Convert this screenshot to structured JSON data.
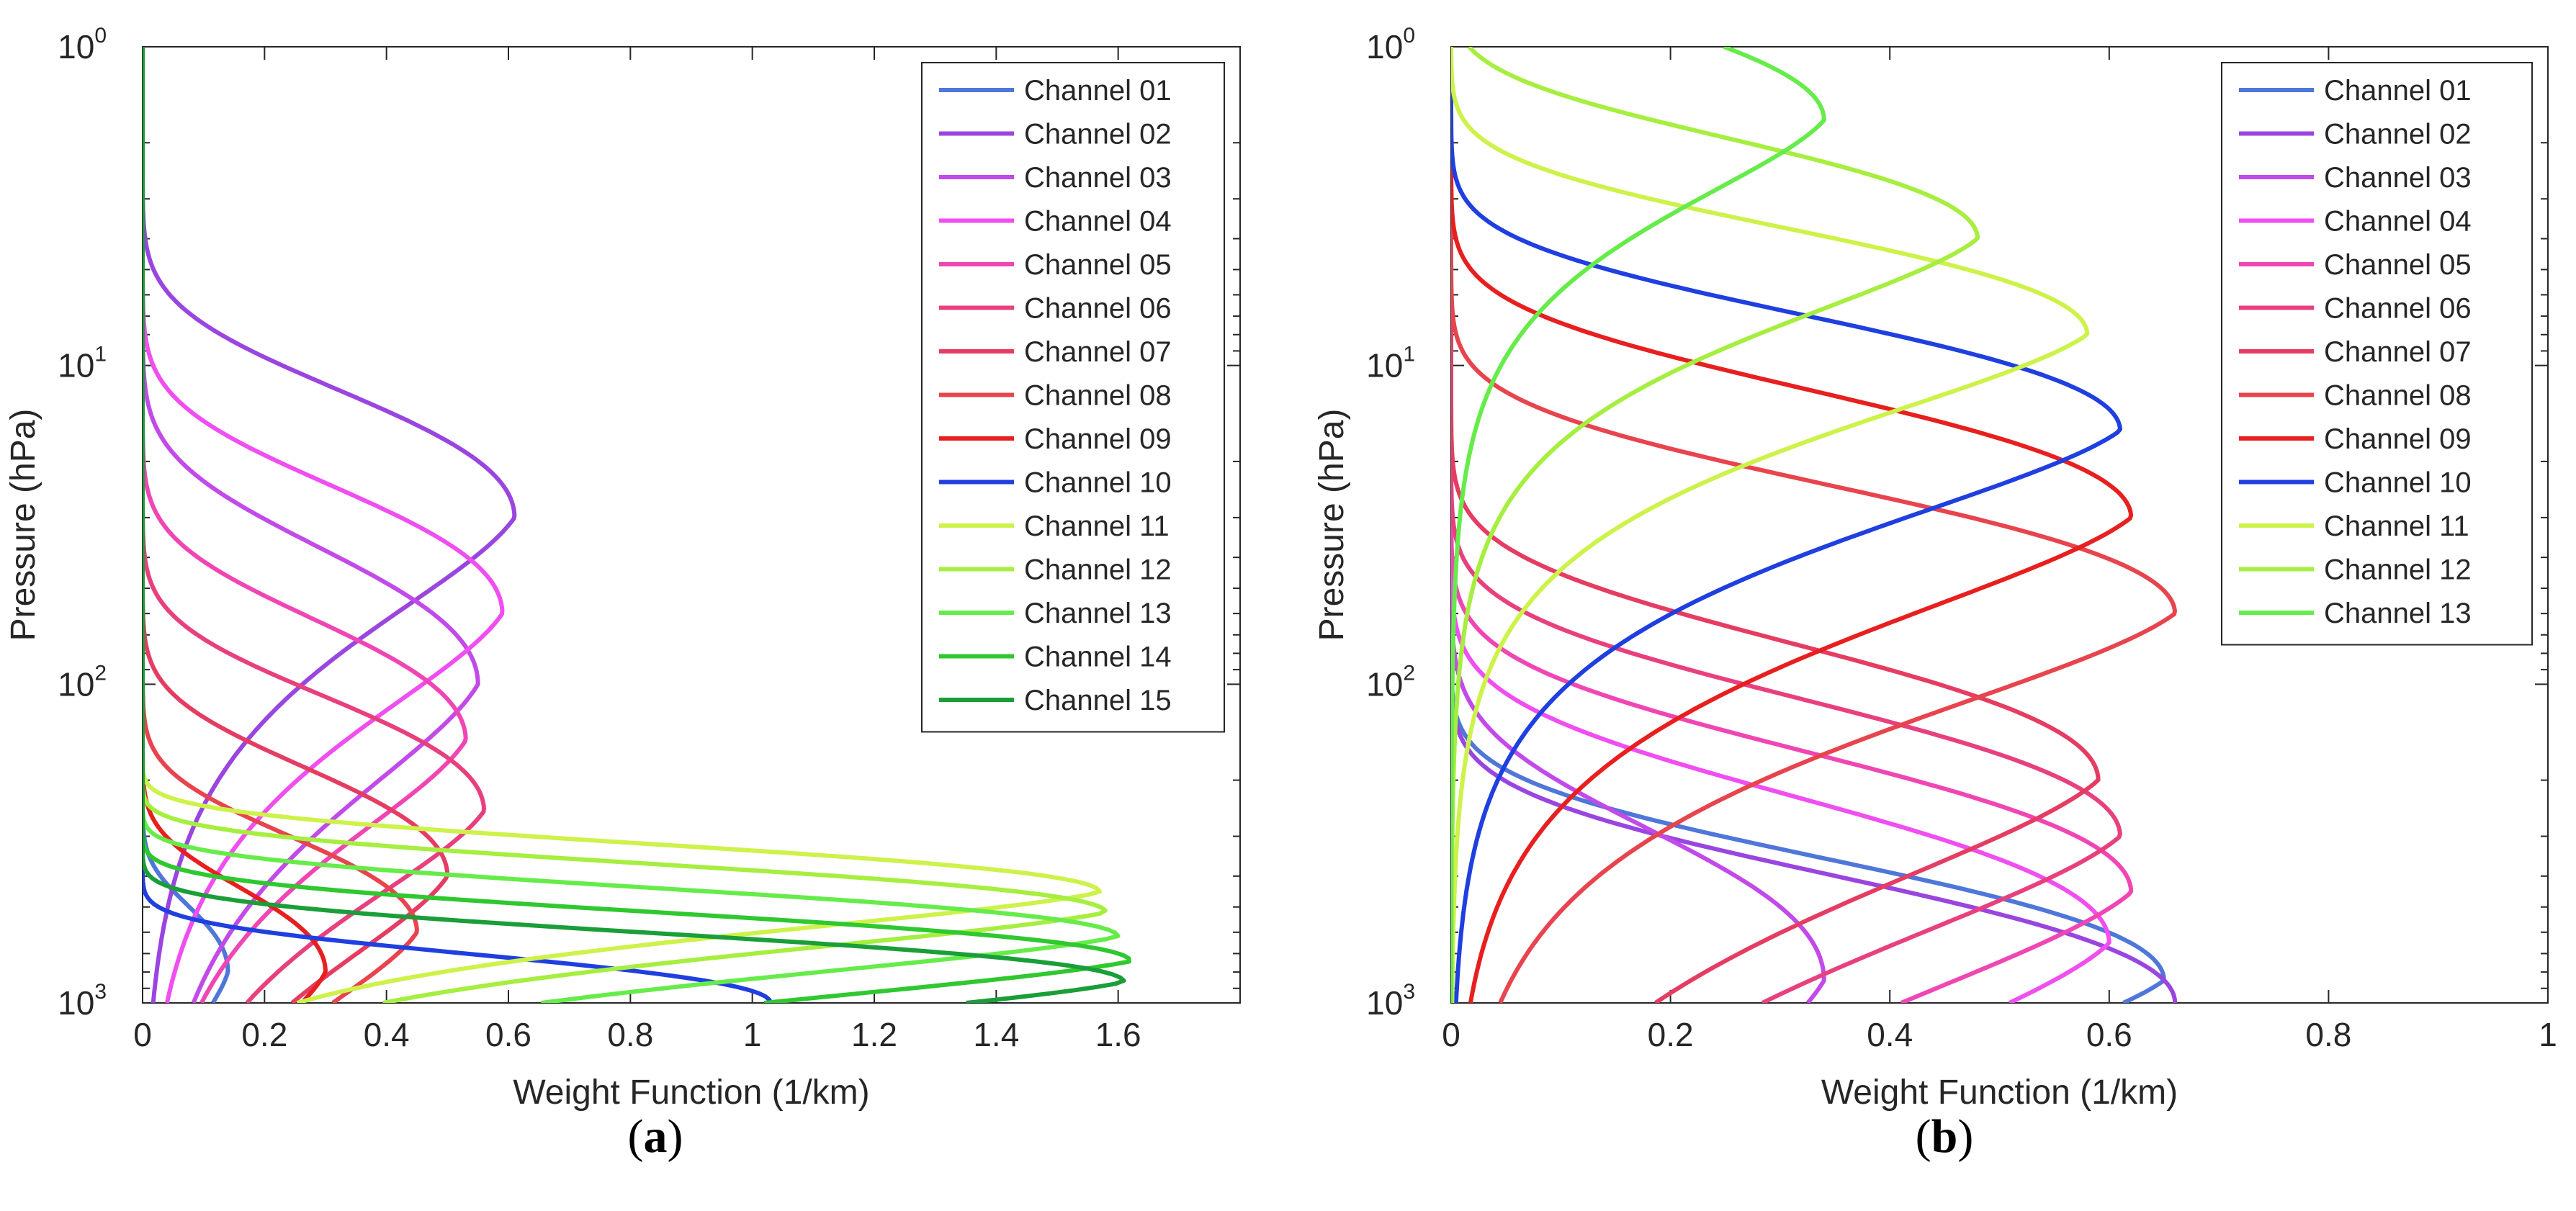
{
  "chart_data": [
    {
      "type": "line",
      "panel_label": "a",
      "xlabel": "Weight Function (1/km)",
      "ylabel": "Pressure (hPa)",
      "xlim": [
        0,
        1.8
      ],
      "ylim": [
        1000,
        1
      ],
      "yscale": "log",
      "xticks": [
        0,
        0.2,
        0.4,
        0.6,
        0.8,
        1,
        1.2,
        1.4,
        1.6
      ],
      "xtick_labels": [
        "0",
        "0.2",
        "0.4",
        "0.6",
        "0.8",
        "1",
        "1.2",
        "1.4",
        "1.6"
      ],
      "yticks": [
        1,
        10,
        100,
        1000
      ],
      "ytick_base": "10",
      "ytick_exponents": [
        "0",
        "1",
        "2",
        "3"
      ],
      "legend_position": "top-right",
      "series": [
        {
          "name": "Channel 01",
          "color": "#4f76d9",
          "peak_value": 0.14,
          "peak_pressure": 800,
          "width": 0.22
        },
        {
          "name": "Channel 02",
          "color": "#9a45e0",
          "peak_value": 0.61,
          "peak_pressure": 30,
          "width": 0.42
        },
        {
          "name": "Channel 03",
          "color": "#c24ae8",
          "peak_value": 0.55,
          "peak_pressure": 100,
          "width": 0.45
        },
        {
          "name": "Channel 04",
          "color": "#f04ef0",
          "peak_value": 0.59,
          "peak_pressure": 60,
          "width": 0.42
        },
        {
          "name": "Channel 05",
          "color": "#f046b4",
          "peak_value": 0.53,
          "peak_pressure": 150,
          "width": 0.4
        },
        {
          "name": "Channel 06",
          "color": "#e8407e",
          "peak_value": 0.56,
          "peak_pressure": 250,
          "width": 0.38
        },
        {
          "name": "Channel 07",
          "color": "#e53d62",
          "peak_value": 0.5,
          "peak_pressure": 400,
          "width": 0.36
        },
        {
          "name": "Channel 08",
          "color": "#e8444d",
          "peak_value": 0.45,
          "peak_pressure": 600,
          "width": 0.32
        },
        {
          "name": "Channel 09",
          "color": "#e81f1f",
          "peak_value": 0.3,
          "peak_pressure": 800,
          "width": 0.28
        },
        {
          "name": "Channel 10",
          "color": "#1f3fe0",
          "peak_value": 1.03,
          "peak_pressure": 1000,
          "width": 0.16
        },
        {
          "name": "Channel 11",
          "color": "#cdf24a",
          "peak_value": 1.57,
          "peak_pressure": 450,
          "width": 0.16
        },
        {
          "name": "Channel 12",
          "color": "#a6ee3f",
          "peak_value": 1.58,
          "peak_pressure": 520,
          "width": 0.16
        },
        {
          "name": "Channel 13",
          "color": "#66ec4a",
          "peak_value": 1.6,
          "peak_pressure": 620,
          "width": 0.16
        },
        {
          "name": "Channel 14",
          "color": "#2fc82f",
          "peak_value": 1.62,
          "peak_pressure": 740,
          "width": 0.16
        },
        {
          "name": "Channel 15",
          "color": "#1a9e38",
          "peak_value": 1.61,
          "peak_pressure": 860,
          "width": 0.16
        }
      ]
    },
    {
      "type": "line",
      "panel_label": "b",
      "xlabel": "Weight Function (1/km)",
      "ylabel": "Pressure (hPa)",
      "xlim": [
        0,
        1
      ],
      "ylim": [
        1000,
        1
      ],
      "yscale": "log",
      "xticks": [
        0,
        0.2,
        0.4,
        0.6,
        0.8,
        1
      ],
      "xtick_labels": [
        "0",
        "0.2",
        "0.4",
        "0.6",
        "0.8",
        "1"
      ],
      "yticks": [
        1,
        10,
        100,
        1000
      ],
      "ytick_base": "10",
      "ytick_exponents": [
        "0",
        "1",
        "2",
        "3"
      ],
      "legend_position": "top-right",
      "series": [
        {
          "name": "Channel 01",
          "color": "#4f76d9",
          "peak_value": 0.65,
          "peak_pressure": 850,
          "width": 0.4
        },
        {
          "name": "Channel 02",
          "color": "#9a45e0",
          "peak_value": 0.66,
          "peak_pressure": 1000,
          "width": 0.42
        },
        {
          "name": "Channel 03",
          "color": "#c24ae8",
          "peak_value": 0.34,
          "peak_pressure": 850,
          "width": 0.5
        },
        {
          "name": "Channel 04",
          "color": "#f04ef0",
          "peak_value": 0.6,
          "peak_pressure": 650,
          "width": 0.48
        },
        {
          "name": "Channel 05",
          "color": "#f046b4",
          "peak_value": 0.62,
          "peak_pressure": 450,
          "width": 0.46
        },
        {
          "name": "Channel 06",
          "color": "#e8407e",
          "peak_value": 0.61,
          "peak_pressure": 300,
          "width": 0.45
        },
        {
          "name": "Channel 07",
          "color": "#e53d62",
          "peak_value": 0.59,
          "peak_pressure": 200,
          "width": 0.45
        },
        {
          "name": "Channel 08",
          "color": "#e8444d",
          "peak_value": 0.66,
          "peak_pressure": 60,
          "width": 0.42
        },
        {
          "name": "Channel 09",
          "color": "#e81f1f",
          "peak_value": 0.62,
          "peak_pressure": 30,
          "width": 0.42
        },
        {
          "name": "Channel 10",
          "color": "#1f3fe0",
          "peak_value": 0.61,
          "peak_pressure": 16,
          "width": 0.38
        },
        {
          "name": "Channel 11",
          "color": "#cdf24a",
          "peak_value": 0.58,
          "peak_pressure": 8,
          "width": 0.35
        },
        {
          "name": "Channel 12",
          "color": "#a6ee3f",
          "peak_value": 0.48,
          "peak_pressure": 4,
          "width": 0.33
        },
        {
          "name": "Channel 13",
          "color": "#66ec4a",
          "peak_value": 0.34,
          "peak_pressure": 1.7,
          "width": 0.33
        }
      ]
    }
  ]
}
